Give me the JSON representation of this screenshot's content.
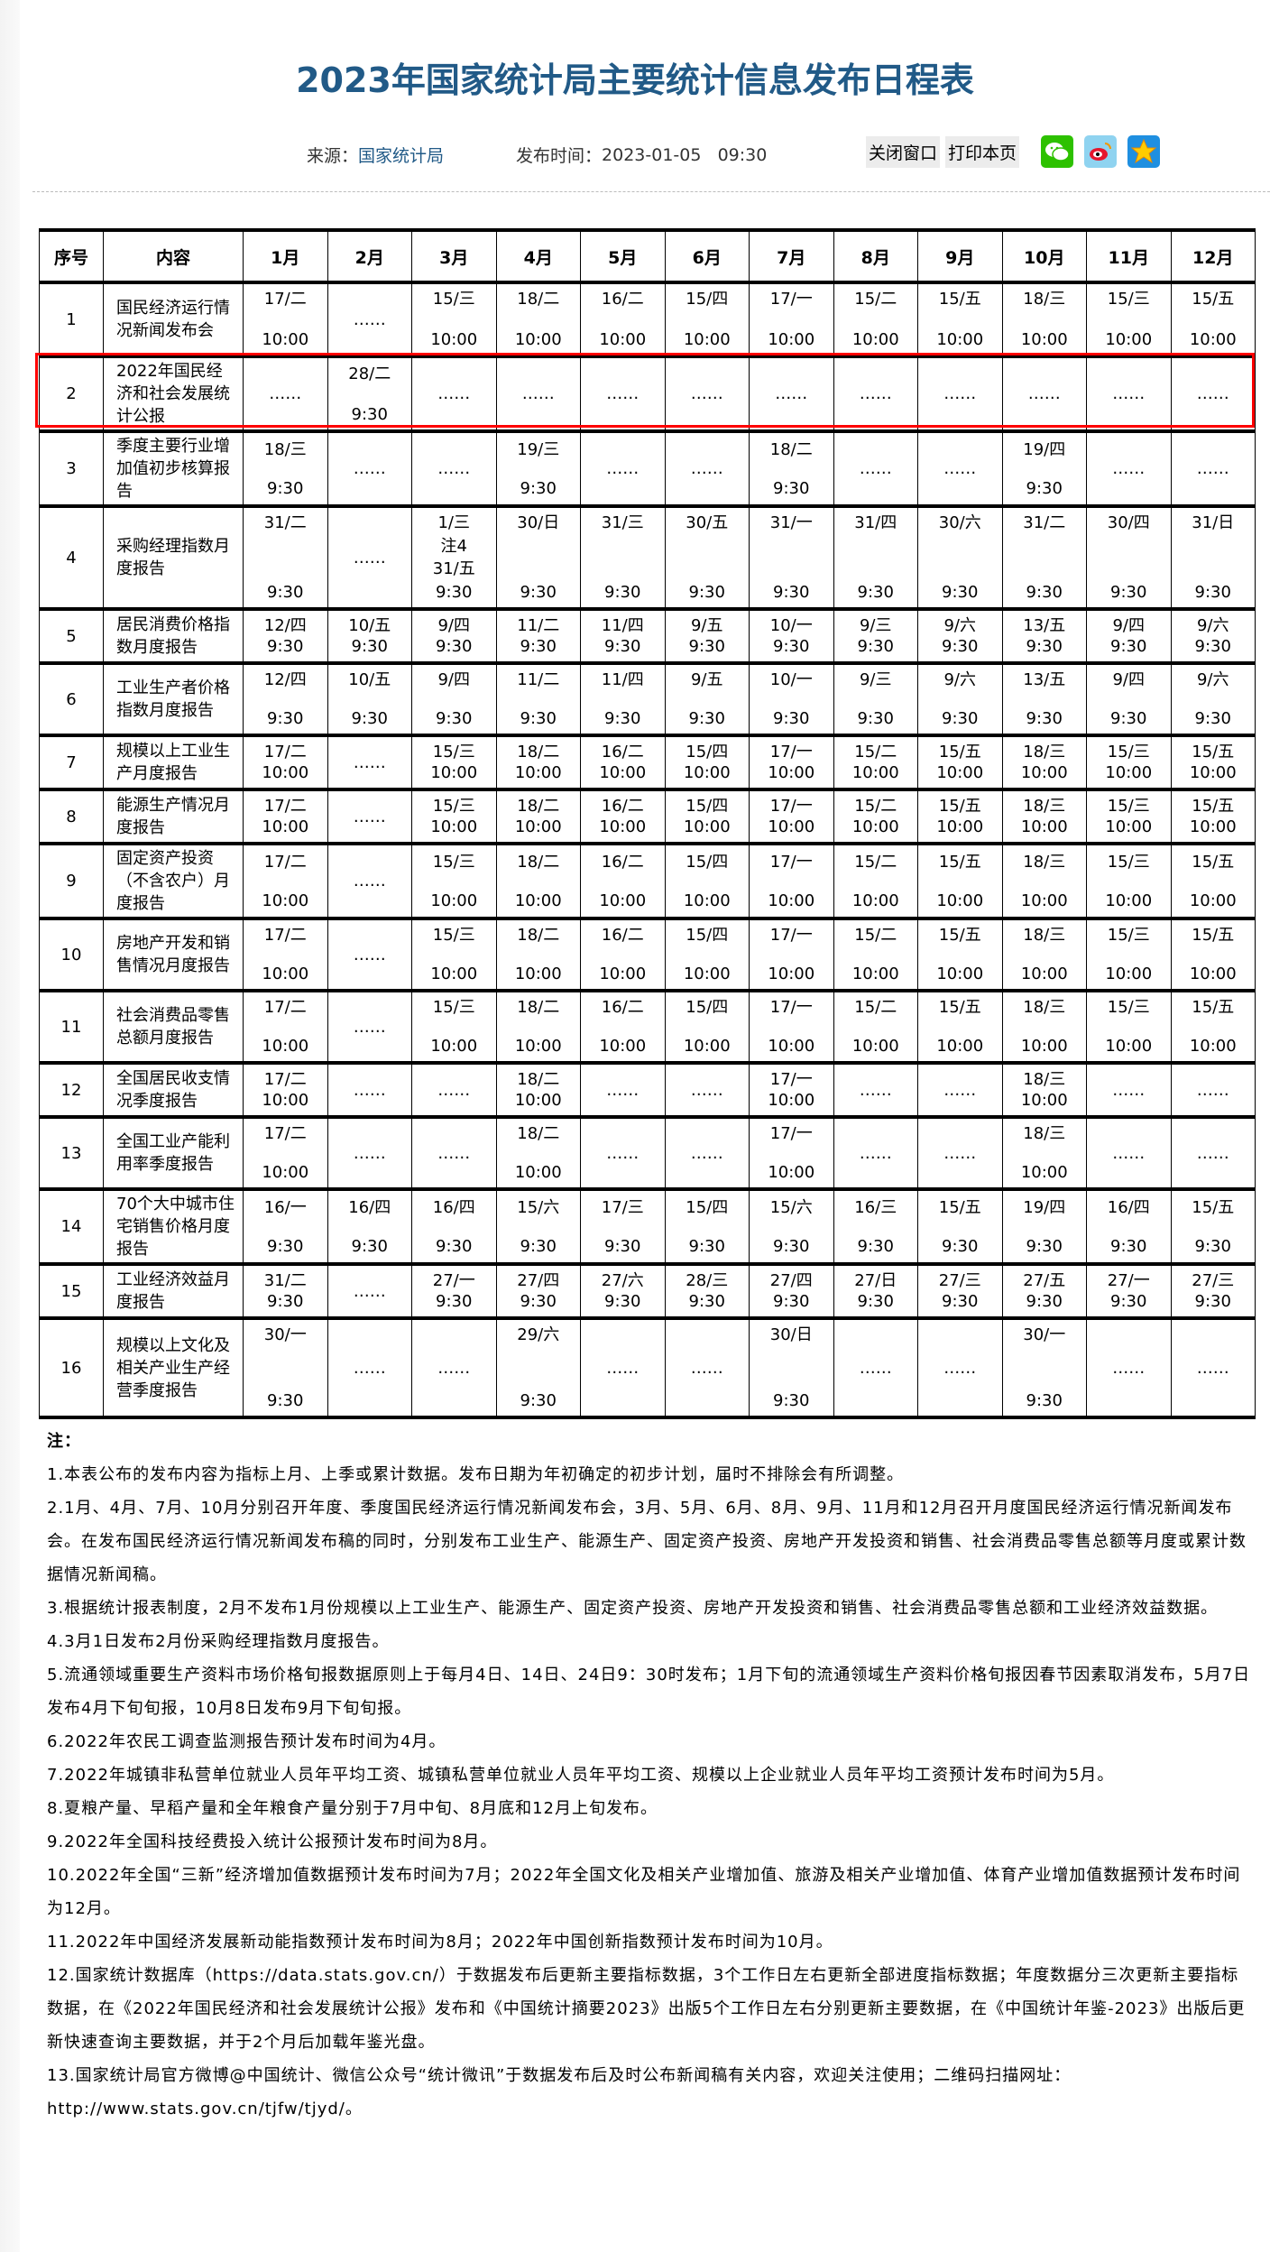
{
  "title": "2023年国家统计局主要统计信息发布日程表",
  "meta": {
    "source_label": "来源：",
    "source_value": "国家统计局",
    "time_label": "发布时间：",
    "time_value": "2023-01-05   09:30"
  },
  "tools": {
    "close_label": "关闭窗口",
    "print_label": "打印本页",
    "share_icons": [
      "wechat-icon",
      "weibo-icon",
      "qzone-icon"
    ]
  },
  "colors": {
    "title": "#215a87",
    "highlight_box": "#ff0000"
  },
  "table": {
    "headers": [
      "序号",
      "内容",
      "1月",
      "2月",
      "3月",
      "4月",
      "5月",
      "6月",
      "7月",
      "8月",
      "9月",
      "10月",
      "11月",
      "12月"
    ],
    "rows": [
      {
        "no": "1",
        "content": "国民经济运行情况新闻发布会",
        "cells": [
          [
            "17/二",
            "10:00"
          ],
          [
            "……"
          ],
          [
            "15/三",
            "10:00"
          ],
          [
            "18/二",
            "10:00"
          ],
          [
            "16/二",
            "10:00"
          ],
          [
            "15/四",
            "10:00"
          ],
          [
            "17/一",
            "10:00"
          ],
          [
            "15/二",
            "10:00"
          ],
          [
            "15/五",
            "10:00"
          ],
          [
            "18/三",
            "10:00"
          ],
          [
            "15/三",
            "10:00"
          ],
          [
            "15/五",
            "10:00"
          ]
        ]
      },
      {
        "no": "2",
        "content": "2022年国民经济和社会发展统计公报",
        "highlighted": true,
        "cells": [
          [
            "……"
          ],
          [
            "28/二",
            "9:30"
          ],
          [
            "……"
          ],
          [
            "……"
          ],
          [
            "……"
          ],
          [
            "……"
          ],
          [
            "……"
          ],
          [
            "……"
          ],
          [
            "……"
          ],
          [
            "……"
          ],
          [
            "……"
          ],
          [
            "……"
          ]
        ]
      },
      {
        "no": "3",
        "content": "季度主要行业增加值初步核算报告",
        "cells": [
          [
            "18/三",
            "9:30"
          ],
          [
            "……"
          ],
          [
            "……"
          ],
          [
            "19/三",
            "9:30"
          ],
          [
            "……"
          ],
          [
            "……"
          ],
          [
            "18/二",
            "9:30"
          ],
          [
            "……"
          ],
          [
            "……"
          ],
          [
            "19/四",
            "9:30"
          ],
          [
            "……"
          ],
          [
            "……"
          ]
        ]
      },
      {
        "no": "4",
        "content": "采购经理指数月度报告",
        "cells": [
          [
            "31/二",
            "9:30"
          ],
          [
            "……"
          ],
          [
            "1/三",
            "注4",
            "31/五",
            "9:30"
          ],
          [
            "30/日",
            "9:30"
          ],
          [
            "31/三",
            "9:30"
          ],
          [
            "30/五",
            "9:30"
          ],
          [
            "31/一",
            "9:30"
          ],
          [
            "31/四",
            "9:30"
          ],
          [
            "30/六",
            "9:30"
          ],
          [
            "31/二",
            "9:30"
          ],
          [
            "30/四",
            "9:30"
          ],
          [
            "31/日",
            "9:30"
          ]
        ]
      },
      {
        "no": "5",
        "content": "居民消费价格指数月度报告",
        "cells": [
          [
            "12/四",
            "9:30"
          ],
          [
            "10/五",
            "9:30"
          ],
          [
            "9/四",
            "9:30"
          ],
          [
            "11/二",
            "9:30"
          ],
          [
            "11/四",
            "9:30"
          ],
          [
            "9/五",
            "9:30"
          ],
          [
            "10/一",
            "9:30"
          ],
          [
            "9/三",
            "9:30"
          ],
          [
            "9/六",
            "9:30"
          ],
          [
            "13/五",
            "9:30"
          ],
          [
            "9/四",
            "9:30"
          ],
          [
            "9/六",
            "9:30"
          ]
        ]
      },
      {
        "no": "6",
        "content": "工业生产者价格指数月度报告",
        "cells": [
          [
            "12/四",
            "9:30"
          ],
          [
            "10/五",
            "9:30"
          ],
          [
            "9/四",
            "9:30"
          ],
          [
            "11/二",
            "9:30"
          ],
          [
            "11/四",
            "9:30"
          ],
          [
            "9/五",
            "9:30"
          ],
          [
            "10/一",
            "9:30"
          ],
          [
            "9/三",
            "9:30"
          ],
          [
            "9/六",
            "9:30"
          ],
          [
            "13/五",
            "9:30"
          ],
          [
            "9/四",
            "9:30"
          ],
          [
            "9/六",
            "9:30"
          ]
        ]
      },
      {
        "no": "7",
        "content": "规模以上工业生产月度报告",
        "cells": [
          [
            "17/二",
            "10:00"
          ],
          [
            "……"
          ],
          [
            "15/三",
            "10:00"
          ],
          [
            "18/二",
            "10:00"
          ],
          [
            "16/二",
            "10:00"
          ],
          [
            "15/四",
            "10:00"
          ],
          [
            "17/一",
            "10:00"
          ],
          [
            "15/二",
            "10:00"
          ],
          [
            "15/五",
            "10:00"
          ],
          [
            "18/三",
            "10:00"
          ],
          [
            "15/三",
            "10:00"
          ],
          [
            "15/五",
            "10:00"
          ]
        ]
      },
      {
        "no": "8",
        "content": "能源生产情况月度报告",
        "cells": [
          [
            "17/二",
            "10:00"
          ],
          [
            "……"
          ],
          [
            "15/三",
            "10:00"
          ],
          [
            "18/二",
            "10:00"
          ],
          [
            "16/二",
            "10:00"
          ],
          [
            "15/四",
            "10:00"
          ],
          [
            "17/一",
            "10:00"
          ],
          [
            "15/二",
            "10:00"
          ],
          [
            "15/五",
            "10:00"
          ],
          [
            "18/三",
            "10:00"
          ],
          [
            "15/三",
            "10:00"
          ],
          [
            "15/五",
            "10:00"
          ]
        ]
      },
      {
        "no": "9",
        "content": "固定资产投资（不含农户）月度报告",
        "cells": [
          [
            "17/二",
            "10:00"
          ],
          [
            "……"
          ],
          [
            "15/三",
            "10:00"
          ],
          [
            "18/二",
            "10:00"
          ],
          [
            "16/二",
            "10:00"
          ],
          [
            "15/四",
            "10:00"
          ],
          [
            "17/一",
            "10:00"
          ],
          [
            "15/二",
            "10:00"
          ],
          [
            "15/五",
            "10:00"
          ],
          [
            "18/三",
            "10:00"
          ],
          [
            "15/三",
            "10:00"
          ],
          [
            "15/五",
            "10:00"
          ]
        ]
      },
      {
        "no": "10",
        "content": "房地产开发和销售情况月度报告",
        "cells": [
          [
            "17/二",
            "10:00"
          ],
          [
            "……"
          ],
          [
            "15/三",
            "10:00"
          ],
          [
            "18/二",
            "10:00"
          ],
          [
            "16/二",
            "10:00"
          ],
          [
            "15/四",
            "10:00"
          ],
          [
            "17/一",
            "10:00"
          ],
          [
            "15/二",
            "10:00"
          ],
          [
            "15/五",
            "10:00"
          ],
          [
            "18/三",
            "10:00"
          ],
          [
            "15/三",
            "10:00"
          ],
          [
            "15/五",
            "10:00"
          ]
        ]
      },
      {
        "no": "11",
        "content": "社会消费品零售总额月度报告",
        "cells": [
          [
            "17/二",
            "10:00"
          ],
          [
            "……"
          ],
          [
            "15/三",
            "10:00"
          ],
          [
            "18/二",
            "10:00"
          ],
          [
            "16/二",
            "10:00"
          ],
          [
            "15/四",
            "10:00"
          ],
          [
            "17/一",
            "10:00"
          ],
          [
            "15/二",
            "10:00"
          ],
          [
            "15/五",
            "10:00"
          ],
          [
            "18/三",
            "10:00"
          ],
          [
            "15/三",
            "10:00"
          ],
          [
            "15/五",
            "10:00"
          ]
        ]
      },
      {
        "no": "12",
        "content": "全国居民收支情况季度报告",
        "cells": [
          [
            "17/二",
            "10:00"
          ],
          [
            "……"
          ],
          [
            "……"
          ],
          [
            "18/二",
            "10:00"
          ],
          [
            "……"
          ],
          [
            "……"
          ],
          [
            "17/一",
            "10:00"
          ],
          [
            "……"
          ],
          [
            "……"
          ],
          [
            "18/三",
            "10:00"
          ],
          [
            "……"
          ],
          [
            "……"
          ]
        ]
      },
      {
        "no": "13",
        "content": "全国工业产能利用率季度报告",
        "cells": [
          [
            "17/二",
            "10:00"
          ],
          [
            "……"
          ],
          [
            "……"
          ],
          [
            "18/二",
            "10:00"
          ],
          [
            "……"
          ],
          [
            "……"
          ],
          [
            "17/一",
            "10:00"
          ],
          [
            "……"
          ],
          [
            "……"
          ],
          [
            "18/三",
            "10:00"
          ],
          [
            "……"
          ],
          [
            "……"
          ]
        ]
      },
      {
        "no": "14",
        "content": "70个大中城市住宅销售价格月度报告",
        "cells": [
          [
            "16/一",
            "9:30"
          ],
          [
            "16/四",
            "9:30"
          ],
          [
            "16/四",
            "9:30"
          ],
          [
            "15/六",
            "9:30"
          ],
          [
            "17/三",
            "9:30"
          ],
          [
            "15/四",
            "9:30"
          ],
          [
            "15/六",
            "9:30"
          ],
          [
            "16/三",
            "9:30"
          ],
          [
            "15/五",
            "9:30"
          ],
          [
            "19/四",
            "9:30"
          ],
          [
            "16/四",
            "9:30"
          ],
          [
            "15/五",
            "9:30"
          ]
        ]
      },
      {
        "no": "15",
        "content": "工业经济效益月度报告",
        "cells": [
          [
            "31/二",
            "9:30"
          ],
          [
            "……"
          ],
          [
            "27/一",
            "9:30"
          ],
          [
            "27/四",
            "9:30"
          ],
          [
            "27/六",
            "9:30"
          ],
          [
            "28/三",
            "9:30"
          ],
          [
            "27/四",
            "9:30"
          ],
          [
            "27/日",
            "9:30"
          ],
          [
            "27/三",
            "9:30"
          ],
          [
            "27/五",
            "9:30"
          ],
          [
            "27/一",
            "9:30"
          ],
          [
            "27/三",
            "9:30"
          ]
        ]
      },
      {
        "no": "16",
        "content": "规模以上文化及相关产业生产经营季度报告",
        "cells": [
          [
            "30/一",
            "9:30"
          ],
          [
            "……"
          ],
          [
            "……"
          ],
          [
            "29/六",
            "9:30"
          ],
          [
            "……"
          ],
          [
            "……"
          ],
          [
            "30/日",
            "9:30"
          ],
          [
            "……"
          ],
          [
            "……"
          ],
          [
            "30/一",
            "9:30"
          ],
          [
            "……"
          ],
          [
            "……"
          ]
        ]
      }
    ]
  },
  "notes": {
    "heading": "注：",
    "items": [
      "1.本表公布的发布内容为指标上月、上季或累计数据。发布日期为年初确定的初步计划，届时不排除会有所调整。",
      "2.1月、4月、7月、10月分别召开年度、季度国民经济运行情况新闻发布会，3月、5月、6月、8月、9月、11月和12月召开月度国民经济运行情况新闻发布会。在发布国民经济运行情况新闻发布稿的同时，分别发布工业生产、能源生产、固定资产投资、房地产开发投资和销售、社会消费品零售总额等月度或累计数据情况新闻稿。",
      "3.根据统计报表制度，2月不发布1月份规模以上工业生产、能源生产、固定资产投资、房地产开发投资和销售、社会消费品零售总额和工业经济效益数据。",
      "4.3月1日发布2月份采购经理指数月度报告。",
      "5.流通领域重要生产资料市场价格旬报数据原则上于每月4日、14日、24日9：30时发布；1月下旬的流通领域生产资料价格旬报因春节因素取消发布，5月7日发布4月下旬旬报，10月8日发布9月下旬旬报。",
      "6.2022年农民工调查监测报告预计发布时间为4月。",
      "7.2022年城镇非私营单位就业人员年平均工资、城镇私营单位就业人员年平均工资、规模以上企业就业人员年平均工资预计发布时间为5月。",
      "8.夏粮产量、早稻产量和全年粮食产量分别于7月中旬、8月底和12月上旬发布。",
      "9.2022年全国科技经费投入统计公报预计发布时间为8月。",
      "10.2022年全国“三新”经济增加值数据预计发布时间为7月；2022年全国文化及相关产业增加值、旅游及相关产业增加值、体育产业增加值数据预计发布时间为12月。",
      "11.2022年中国经济发展新动能指数预计发布时间为8月；2022年中国创新指数预计发布时间为10月。",
      "12.国家统计数据库（https://data.stats.gov.cn/）于数据发布后更新主要指标数据，3个工作日左右更新全部进度指标数据；年度数据分三次更新主要指标数据，在《2022年国民经济和社会发展统计公报》发布和《中国统计摘要2023》出版5个工作日左右分别更新主要数据，在《中国统计年鉴-2023》出版后更新快速查询主要数据，并于2个月后加载年鉴光盘。",
      "13.国家统计局官方微博@中国统计、微信公众号“统计微讯”于数据发布后及时公布新闻稿有关内容，欢迎关注使用；二维码扫描网址：http://www.stats.gov.cn/tjfw/tjyd/。"
    ]
  }
}
